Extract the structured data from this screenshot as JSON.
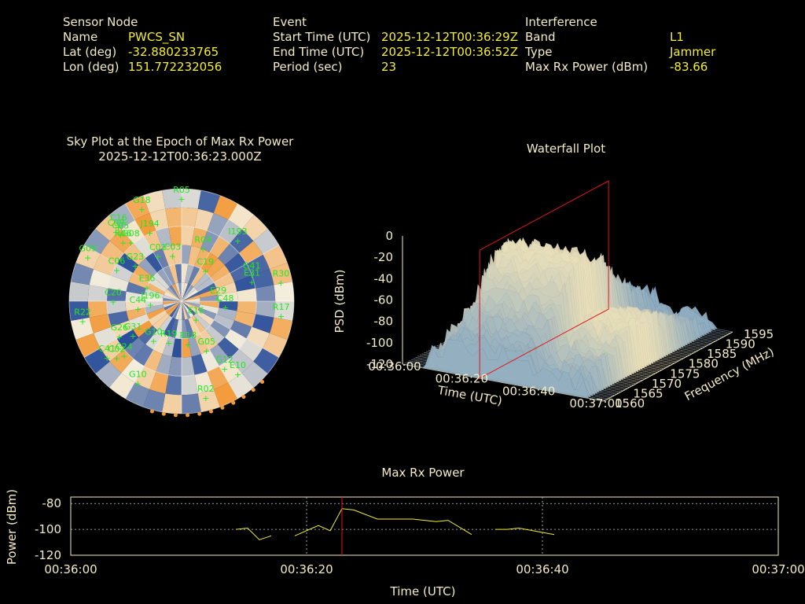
{
  "header": {
    "sensor": {
      "title": "Sensor Node",
      "rows": [
        {
          "label": "Name",
          "value": "PWCS_SN"
        },
        {
          "label": "Lat (deg)",
          "value": "-32.880233765"
        },
        {
          "label": "Lon (deg)",
          "value": "151.772232056"
        }
      ]
    },
    "event": {
      "title": "Event",
      "rows": [
        {
          "label": "Start Time (UTC)",
          "value": "2025-12-12T00:36:29Z"
        },
        {
          "label": "End Time (UTC)",
          "value": "2025-12-12T00:36:52Z"
        },
        {
          "label": "Period (sec)",
          "value": "23"
        }
      ]
    },
    "interference": {
      "title": "Interference",
      "rows": [
        {
          "label": "Band",
          "value": "L1"
        },
        {
          "label": "Type",
          "value": "Jammer"
        },
        {
          "label": "Max Rx Power (dBm)",
          "value": "-83.66"
        }
      ]
    }
  },
  "colors": {
    "text": "#f5ecc4",
    "value": "#f4ee30",
    "satellite": "#22e822",
    "marker": "#e01818",
    "line": "#f4ee30",
    "hot": "#f39a3a",
    "cold": "#2a4e9a"
  },
  "chart_data": [
    {
      "type": "polar",
      "title": "Sky Plot at the Epoch of Max Rx Power",
      "subtitle": "2025-12-12T00:36:23.000Z",
      "satellites": [
        {
          "label": "R05",
          "az": 0,
          "el": 3
        },
        {
          "label": "I193",
          "az": 40,
          "el": 20
        },
        {
          "label": "J194",
          "az": 337,
          "el": 25
        },
        {
          "label": "G18",
          "az": 338,
          "el": 5
        },
        {
          "label": "C16",
          "az": 322,
          "el": 8
        },
        {
          "label": "C05",
          "az": 320,
          "el": 14
        },
        {
          "label": "C09",
          "az": 319,
          "el": 10
        },
        {
          "label": "G08",
          "az": 322,
          "el": 24
        },
        {
          "label": "R06",
          "az": 318,
          "el": 20
        },
        {
          "label": "G09",
          "az": 298,
          "el": 5
        },
        {
          "label": "C06",
          "az": 300,
          "el": 30
        },
        {
          "label": "G23",
          "az": 312,
          "el": 40
        },
        {
          "label": "C01",
          "az": 335,
          "el": 45
        },
        {
          "label": "C03",
          "az": 350,
          "el": 48
        },
        {
          "label": "R04",
          "az": 20,
          "el": 40
        },
        {
          "label": "C19",
          "az": 33,
          "el": 55
        },
        {
          "label": "E36",
          "az": 300,
          "el": 58
        },
        {
          "label": "G41",
          "az": 65,
          "el": 28
        },
        {
          "label": "E31",
          "az": 70,
          "el": 30
        },
        {
          "label": "R30",
          "az": 76,
          "el": 8
        },
        {
          "label": "E29",
          "az": 78,
          "el": 60
        },
        {
          "label": "R17",
          "az": 95,
          "el": 10
        },
        {
          "label": "C48",
          "az": 90,
          "el": 55
        },
        {
          "label": "C20",
          "az": 275,
          "el": 35
        },
        {
          "label": "C44",
          "az": 268,
          "el": 55
        },
        {
          "label": "J196",
          "az": 275,
          "el": 65
        },
        {
          "label": "R22",
          "az": 262,
          "el": 10
        },
        {
          "label": "E16",
          "az": 130,
          "el": 75
        },
        {
          "label": "G26",
          "az": 245,
          "el": 35
        },
        {
          "label": "G31",
          "az": 240,
          "el": 45
        },
        {
          "label": "G10",
          "az": 220,
          "el": 55
        },
        {
          "label": "C41",
          "az": 236,
          "el": 18
        },
        {
          "label": "C24",
          "az": 230,
          "el": 30
        },
        {
          "label": "C02",
          "az": 232,
          "el": 24
        },
        {
          "label": "R19",
          "az": 200,
          "el": 60
        },
        {
          "label": "R18",
          "az": 170,
          "el": 60
        },
        {
          "label": "G05",
          "az": 150,
          "el": 50
        },
        {
          "label": "G12",
          "az": 145,
          "el": 30
        },
        {
          "label": "R02",
          "az": 165,
          "el": 15
        },
        {
          "label": "G10",
          "az": 210,
          "el": 20
        },
        {
          "label": "E10",
          "az": 140,
          "el": 20
        }
      ]
    },
    {
      "type": "surface",
      "title": "Waterfall Plot",
      "xlabel": "Time (UTC)",
      "ylabel": "Frequency (MHz)",
      "zlabel": "PSD (dBm)",
      "x_ticks": [
        "00:36:00",
        "00:36:20",
        "00:36:40",
        "00:37:00"
      ],
      "y_ticks": [
        "1560",
        "1565",
        "1570",
        "1575",
        "1580",
        "1585",
        "1590",
        "1595"
      ],
      "z_ticks": [
        "0",
        "-20",
        "-40",
        "-60",
        "-80",
        "-100",
        "-120"
      ],
      "zlim": [
        -120,
        0
      ],
      "marker_time": "00:36:23"
    },
    {
      "type": "line",
      "title": "Max Rx Power",
      "xlabel": "Time (UTC)",
      "ylabel": "Power (dBm)",
      "x_ticks": [
        "00:36:00",
        "00:36:20",
        "00:36:40",
        "00:37:00"
      ],
      "y_ticks": [
        "-80",
        "-100",
        "-120"
      ],
      "xlim": [
        0,
        60
      ],
      "ylim": [
        -120,
        -75
      ],
      "grid": true,
      "marker_x": 23,
      "segments": [
        [
          [
            14,
            -100
          ],
          [
            15,
            -99
          ],
          [
            16,
            -108
          ],
          [
            17,
            -105
          ]
        ],
        [
          [
            19,
            -105
          ],
          [
            21,
            -97
          ],
          [
            22,
            -101
          ],
          [
            23,
            -84
          ],
          [
            24,
            -85
          ],
          [
            26,
            -92
          ],
          [
            28,
            -92
          ],
          [
            29,
            -92
          ],
          [
            31,
            -94
          ],
          [
            32,
            -93
          ],
          [
            34,
            -104
          ]
        ],
        [
          [
            36,
            -100
          ],
          [
            37,
            -100
          ],
          [
            38,
            -99
          ],
          [
            41,
            -104
          ]
        ]
      ]
    }
  ]
}
